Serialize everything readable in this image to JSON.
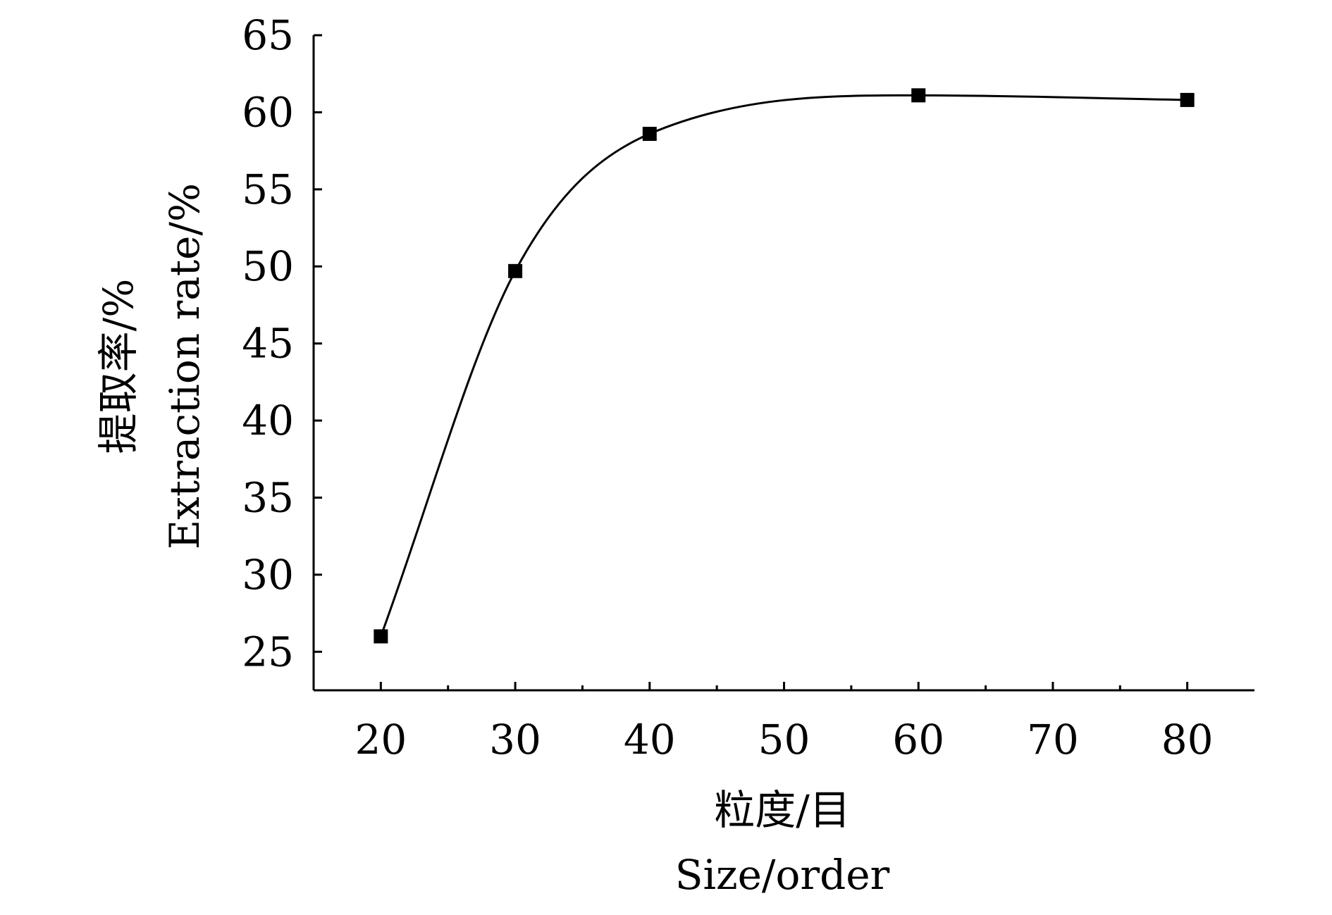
{
  "chart_data": {
    "type": "line",
    "title": "",
    "xlabel_cn": "粒度/目",
    "xlabel_en": "Size/order",
    "ylabel_cn": "提取率/%",
    "ylabel_en": "Extraction rate/%",
    "xlim": [
      15,
      85
    ],
    "ylim": [
      22.5,
      65
    ],
    "x_ticks": [
      20,
      30,
      40,
      50,
      60,
      70,
      80
    ],
    "y_ticks": [
      25,
      30,
      35,
      40,
      45,
      50,
      55,
      60,
      65
    ],
    "grid": false,
    "legend": "none",
    "marker": "square",
    "line_style": "smooth",
    "color": "#000000",
    "series": [
      {
        "x": [
          20,
          30,
          40,
          60,
          80
        ],
        "y": [
          26.0,
          49.7,
          58.6,
          61.1,
          60.8
        ]
      }
    ]
  }
}
